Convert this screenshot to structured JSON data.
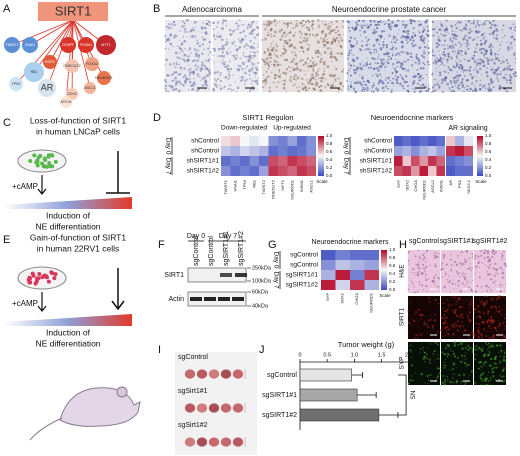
{
  "A": {
    "label": "A",
    "hub": "SIRT1",
    "nodes": [
      "TWIST1",
      "SNAI1",
      "CENPF",
      "FOXM1",
      "MYT1",
      "EGR2",
      "RB1",
      "ONECUT2",
      "FOXA2",
      "NEUROD1",
      "TP53",
      "ASCL1",
      "SOX2",
      "AR",
      "MYCN"
    ]
  },
  "B": {
    "label": "B",
    "groups": [
      "Adenocarcinoma",
      "Neuroendocrine prostate cancer"
    ]
  },
  "C": {
    "label": "C",
    "title": [
      "Loss-of-function of SIRT1",
      "in human LNCaP cells"
    ],
    "treatment": "+cAMP",
    "outcome": [
      "Induction of",
      "NE differentiation"
    ]
  },
  "D": {
    "label": "D",
    "regulon_title": "SIRT1 Regulon",
    "regulon_groups": [
      "Down-regulated",
      "Up-regulated"
    ],
    "rows": [
      "shControl",
      "shControl",
      "shSIRT1#1",
      "shSIRT1#2"
    ],
    "days": [
      "Day 0",
      "Day 7"
    ],
    "regulon_genes": [
      "TWIST1",
      "SNAI1",
      "TP53",
      "RB1",
      "TWIST2",
      "ONECUT2",
      "MYT1",
      "NEUROD1",
      "INSM1",
      "ASCL1"
    ],
    "marker_title": "Neuroendocrine markers",
    "ar_title": "AR signaling",
    "marker_genes": [
      "SYP",
      "SOX2",
      "CHGA",
      "NEUROD1",
      "ASCL1",
      "INSM1"
    ],
    "ar_genes": [
      "AR",
      "PSA",
      "NKX3.1"
    ],
    "scale_ticks": [
      "1.0",
      "0.8",
      "0.6",
      "0.4",
      "0.2",
      "0.0"
    ],
    "scale_label": "Scale"
  },
  "E": {
    "label": "E",
    "title": [
      "Gain-of-function of SIRT1",
      "in human 22RV1 cells"
    ],
    "treatment": "+cAMP",
    "outcome": [
      "Induction of",
      "NE differentiation"
    ]
  },
  "F": {
    "label": "F",
    "days": [
      "Day 0",
      "Day 7"
    ],
    "lanes": [
      "sgControl",
      "sgControl",
      "sgSIRT1#1",
      "sgSIRT1#2"
    ],
    "proteins": [
      "SIRT1",
      "Actin"
    ],
    "sizes": [
      "250kDa",
      "100kDa",
      "60kDa",
      "40kDa"
    ]
  },
  "G": {
    "label": "G",
    "title": "Neuroendocrine markers",
    "rows": [
      "sgControl",
      "sgControl",
      "sgSIRT1#1",
      "sgSIRT1#2"
    ],
    "days": [
      "Day 0",
      "Day 7"
    ],
    "genes": [
      "SYP",
      "SOX2",
      "CHGA",
      "NEUROD1"
    ],
    "scale_ticks": [
      "1.0",
      "0.8",
      "0.6",
      "0.4",
      "0.2",
      "0.0"
    ],
    "scale_label": "Scale"
  },
  "H": {
    "label": "H",
    "columns": [
      "sgControl",
      "sgSIRT1#1",
      "sgSIRT1#2"
    ],
    "rows": [
      "H&E",
      "SIRT1",
      "SYP"
    ]
  },
  "I": {
    "label": "I",
    "rows": [
      "sgControl",
      "sgSirt1#1",
      "sgSirt1#2"
    ]
  },
  "chart_data": {
    "type": "bar",
    "label": "J",
    "xlabel": "Tumor weight (g)",
    "categories": [
      "sgControl",
      "sgSIRT1#1",
      "sgSIRT1#2"
    ],
    "values": [
      0.95,
      1.05,
      1.45
    ],
    "errors": [
      0.2,
      0.35,
      0.35
    ],
    "colors": [
      "#e4e4e4",
      "#a8a8a8",
      "#6f6f6f"
    ],
    "xlim": [
      0,
      2.5
    ],
    "xticks": [
      0,
      0.5,
      {
        "value": 1,
        "label": "1.0"
      },
      1.5,
      {
        "value": 2,
        "label": "2.0"
      },
      2.5
    ],
    "annotation": "NS"
  }
}
